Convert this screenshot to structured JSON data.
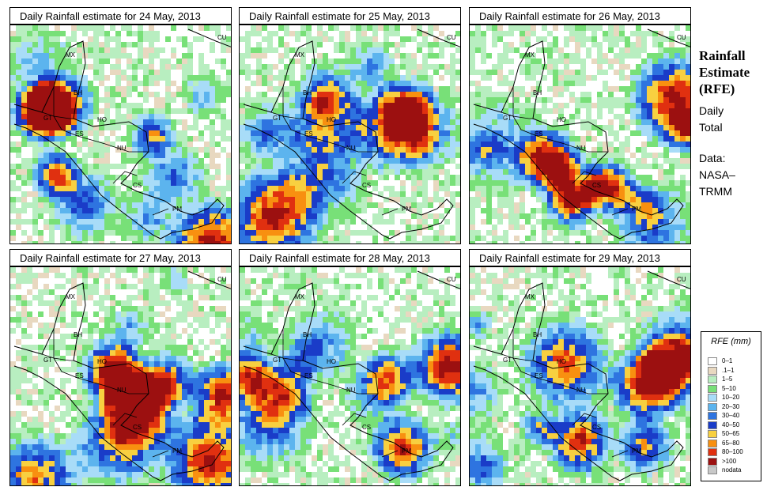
{
  "panels": [
    {
      "title": "Daily Rainfall estimate for  24 May, 2013"
    },
    {
      "title": "Daily Rainfall estimate for  25 May, 2013"
    },
    {
      "title": "Daily Rainfall estimate for  26 May, 2013"
    },
    {
      "title": "Daily Rainfall estimate for  27 May, 2013"
    },
    {
      "title": "Daily Rainfall estimate for  28 May, 2013"
    },
    {
      "title": "Daily Rainfall estimate for  29 May, 2013"
    }
  ],
  "country_labels": [
    "MX",
    "BH",
    "GT",
    "HO",
    "ES",
    "NU",
    "CS",
    "PM",
    "CU"
  ],
  "side": {
    "title_line1": "Rainfall",
    "title_line2": "Estimate",
    "title_line3": "(RFE)",
    "daily1": "Daily",
    "daily2": "Total",
    "data1": "Data:",
    "data2": "NASA–",
    "data3": "TRMM"
  },
  "legend": {
    "title": "RFE (mm)",
    "items": [
      {
        "label": "0–1",
        "color": "#ffffff"
      },
      {
        "label": ".1–1",
        "color": "#e8d8c0"
      },
      {
        "label": "1–5",
        "color": "#b8eec0"
      },
      {
        "label": "5–10",
        "color": "#78e078"
      },
      {
        "label": "10–20",
        "color": "#a8dcf8"
      },
      {
        "label": "20–30",
        "color": "#5cb4ee"
      },
      {
        "label": "30–40",
        "color": "#2e74e0"
      },
      {
        "label": "40–50",
        "color": "#1a3cc8"
      },
      {
        "label": "50–65",
        "color": "#f8d040"
      },
      {
        "label": "65–80",
        "color": "#f89010"
      },
      {
        "label": "80–100",
        "color": "#e03010"
      },
      {
        "label": ">100",
        "color": "#9c1010"
      },
      {
        "label": "nodata",
        "color": "#c8c8c8"
      }
    ]
  }
}
